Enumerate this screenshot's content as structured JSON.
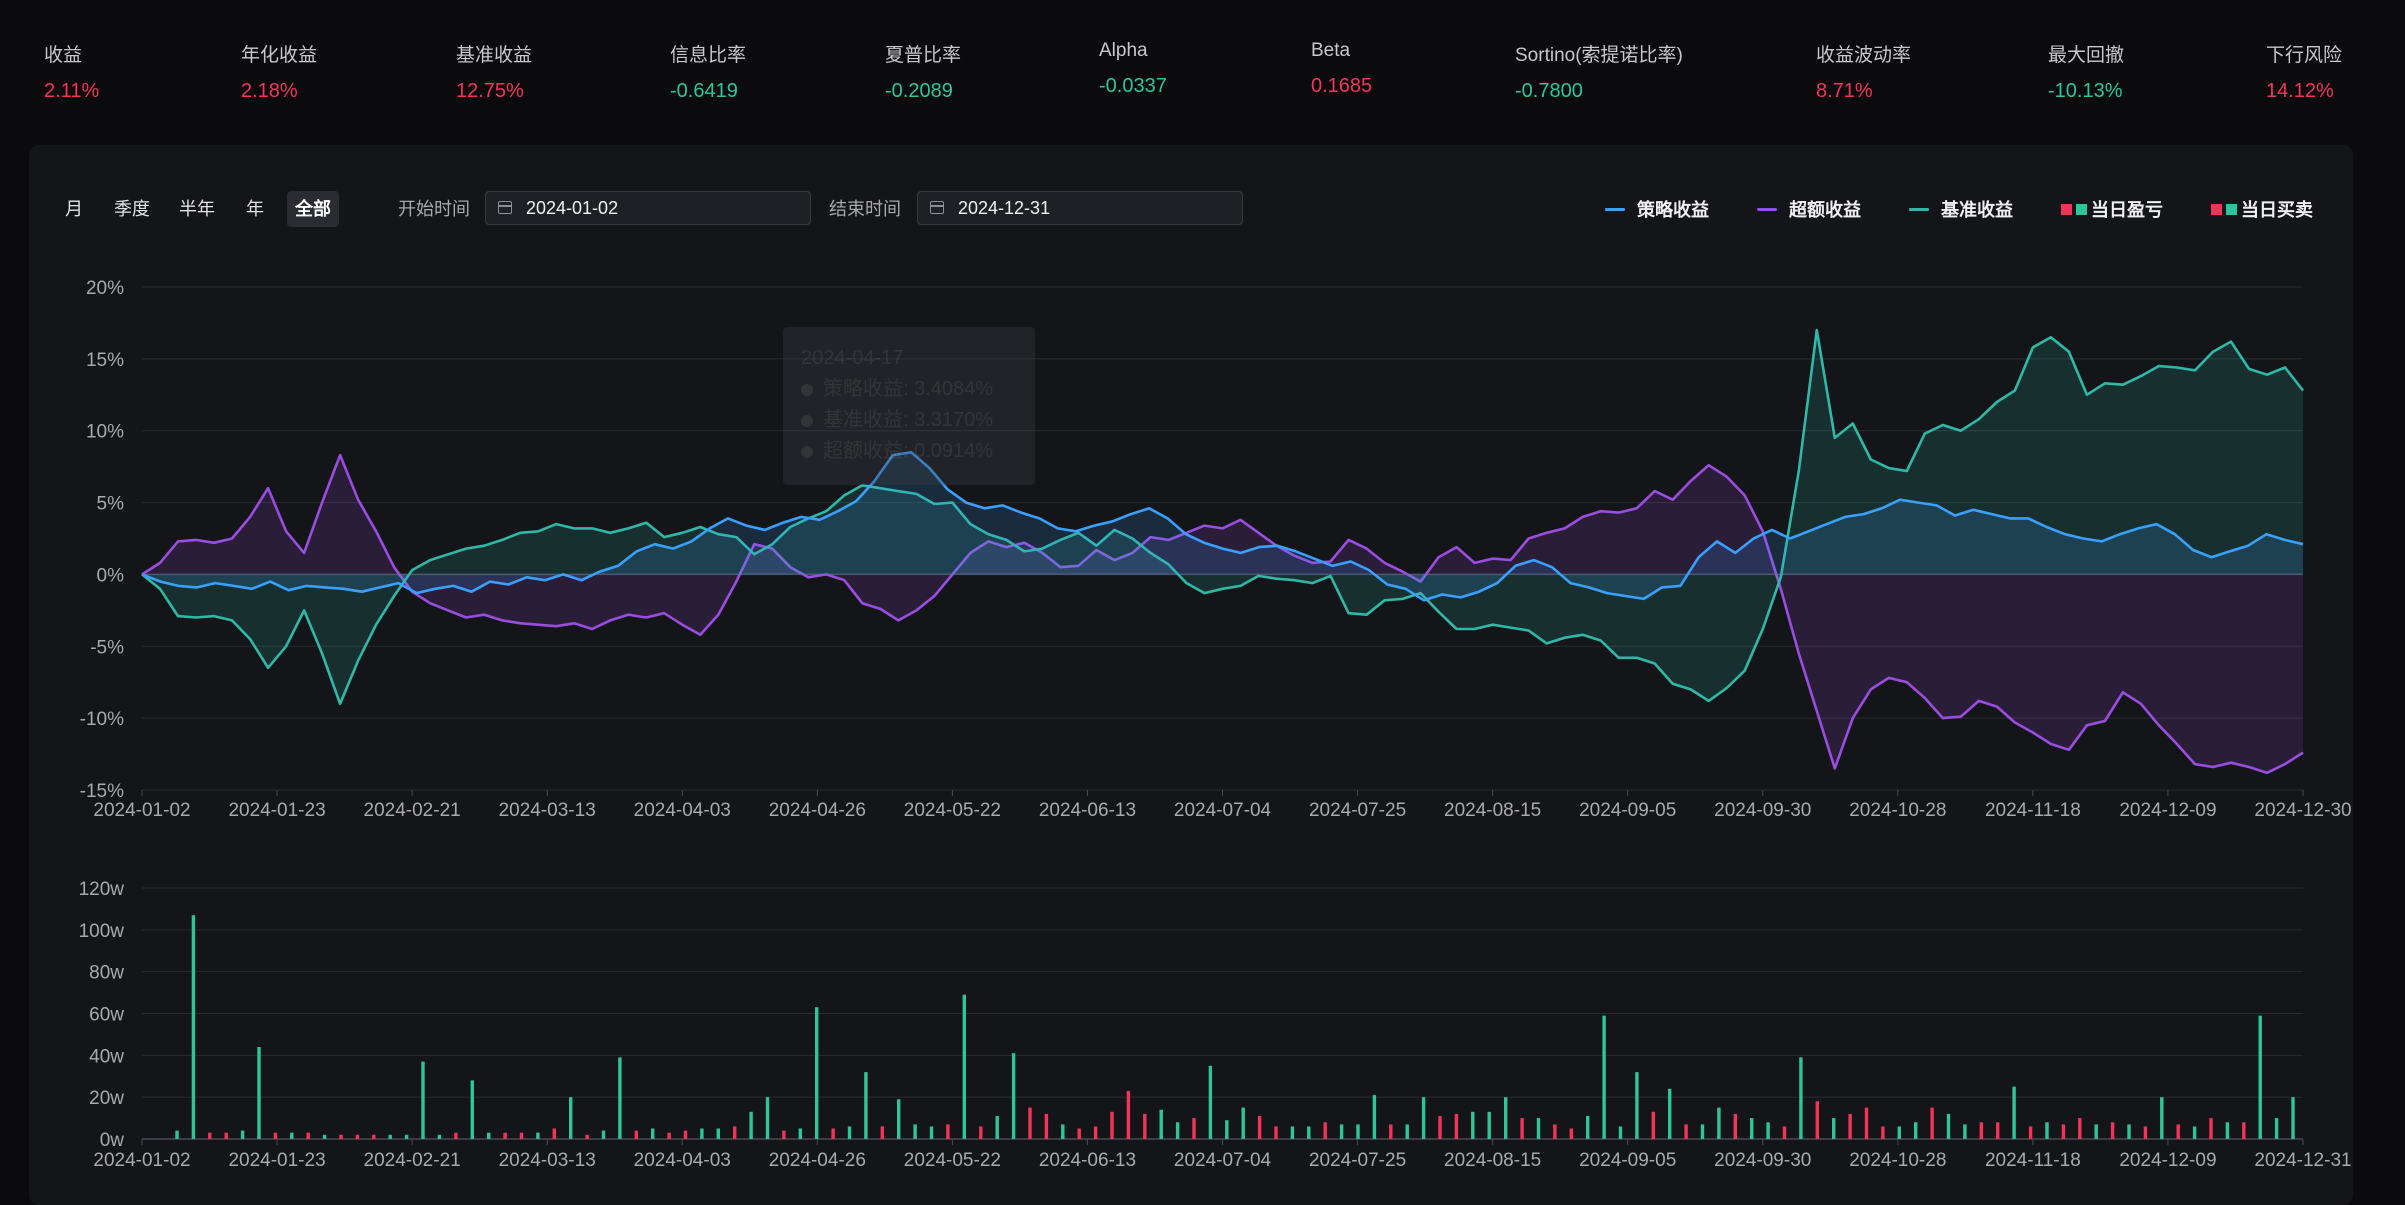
{
  "metrics": [
    {
      "label": "收益",
      "value": "2.11%",
      "dir": "up"
    },
    {
      "label": "年化收益",
      "value": "2.18%",
      "dir": "up"
    },
    {
      "label": "基准收益",
      "value": "12.75%",
      "dir": "up"
    },
    {
      "label": "信息比率",
      "value": "-0.6419",
      "dir": "down"
    },
    {
      "label": "夏普比率",
      "value": "-0.2089",
      "dir": "down"
    },
    {
      "label": "Alpha",
      "value": "-0.0337",
      "dir": "down"
    },
    {
      "label": "Beta",
      "value": "0.1685",
      "dir": "up"
    },
    {
      "label": "Sortino(索提诺比率)",
      "value": "-0.7800",
      "dir": "down"
    },
    {
      "label": "收益波动率",
      "value": "8.71%",
      "dir": "up"
    },
    {
      "label": "最大回撤",
      "value": "-10.13%",
      "dir": "down"
    },
    {
      "label": "下行风险",
      "value": "14.12%",
      "dir": "up"
    }
  ],
  "toolbar": {
    "ranges": [
      "月",
      "季度",
      "半年",
      "年",
      "全部"
    ],
    "active_range": "全部",
    "start_label": "开始时间",
    "start_value": "2024-01-02",
    "end_label": "结束时间",
    "end_value": "2024-12-31"
  },
  "legend": [
    {
      "name": "策略收益",
      "type": "line",
      "color": "#3aa0ff"
    },
    {
      "name": "超额收益",
      "type": "line",
      "color": "#9b4de0"
    },
    {
      "name": "基准收益",
      "type": "line",
      "color": "#2fb8a8"
    },
    {
      "name": "当日盈亏",
      "type": "bars",
      "colors": [
        "#f0345a",
        "#2fc59a"
      ]
    },
    {
      "name": "当日买卖",
      "type": "bars",
      "colors": [
        "#f0345a",
        "#2fc59a"
      ]
    }
  ],
  "colors": {
    "strategy": "#3aa0ff",
    "excess": "#9b4de0",
    "benchmark": "#2fb8a8",
    "up": "#f0345a",
    "down": "#2fc59a",
    "grid": "#2a2b30",
    "axis_text": "#a9a9ae"
  },
  "tooltip": {
    "date": "2024-04-17",
    "rows": [
      "策略收益: 3.4084%",
      "基准收益: 3.3170%",
      "超额收益: 0.0914%"
    ]
  },
  "chart_data": [
    {
      "type": "line",
      "x_ticks": [
        "2024-01-02",
        "2024-01-23",
        "2024-02-21",
        "2024-03-13",
        "2024-04-03",
        "2024-04-26",
        "2024-05-22",
        "2024-06-13",
        "2024-07-04",
        "2024-07-25",
        "2024-08-15",
        "2024-09-05",
        "2024-09-30",
        "2024-10-28",
        "2024-11-18",
        "2024-12-09",
        "2024-12-30"
      ],
      "y_ticks": [
        "20%",
        "15%",
        "10%",
        "5%",
        "0%",
        "-5%",
        "-10%",
        "-15%"
      ],
      "ylim": [
        -15,
        20
      ],
      "y_unit": "%",
      "series": [
        {
          "name": "策略收益",
          "values": [
            0.0,
            -0.5,
            -0.8,
            -0.9,
            -0.6,
            -0.8,
            -1.0,
            -0.5,
            -1.1,
            -0.8,
            -0.9,
            -1.0,
            -1.2,
            -0.9,
            -0.6,
            -1.3,
            -1.0,
            -0.8,
            -1.2,
            -0.5,
            -0.7,
            -0.2,
            -0.4,
            0.0,
            -0.4,
            0.2,
            0.6,
            1.6,
            2.1,
            1.8,
            2.3,
            3.2,
            3.9,
            3.4,
            3.1,
            3.6,
            4.0,
            3.8,
            4.4,
            5.1,
            6.5,
            8.3,
            8.5,
            7.4,
            5.9,
            5.0,
            4.6,
            4.8,
            4.3,
            3.9,
            3.2,
            3.0,
            3.4,
            3.7,
            4.2,
            4.6,
            3.9,
            2.8,
            2.2,
            1.8,
            1.5,
            1.9,
            2.0,
            1.6,
            1.1,
            0.6,
            0.9,
            0.3,
            -0.7,
            -1.0,
            -1.8,
            -1.4,
            -1.6,
            -1.2,
            -0.6,
            0.6,
            1.0,
            0.5,
            -0.6,
            -0.9,
            -1.3,
            -1.5,
            -1.7,
            -0.9,
            -0.8,
            1.2,
            2.3,
            1.5,
            2.5,
            3.1,
            2.5,
            3.0,
            3.5,
            4.0,
            4.2,
            4.6,
            5.2,
            5.0,
            4.8,
            4.1,
            4.5,
            4.2,
            3.9,
            3.9,
            3.3,
            2.8,
            2.5,
            2.3,
            2.8,
            3.2,
            3.5,
            2.8,
            1.7,
            1.2,
            1.6,
            2.0,
            2.8,
            2.4,
            2.1
          ]
        },
        {
          "name": "超额收益",
          "values": [
            0.0,
            0.8,
            2.3,
            2.4,
            2.2,
            2.5,
            4.0,
            6.0,
            3.0,
            1.5,
            5.0,
            8.3,
            5.2,
            3.0,
            0.5,
            -1.2,
            -2.0,
            -2.5,
            -3.0,
            -2.8,
            -3.2,
            -3.4,
            -3.5,
            -3.6,
            -3.4,
            -3.8,
            -3.2,
            -2.8,
            -3.0,
            -2.7,
            -3.5,
            -4.2,
            -2.8,
            -0.5,
            2.1,
            1.8,
            0.5,
            -0.2,
            0.0,
            -0.4,
            -2.0,
            -2.4,
            -3.2,
            -2.5,
            -1.5,
            0.0,
            1.5,
            2.3,
            1.9,
            2.2,
            1.5,
            0.5,
            0.6,
            1.7,
            1.0,
            1.5,
            2.6,
            2.4,
            2.9,
            3.4,
            3.2,
            3.8,
            2.9,
            2.0,
            1.3,
            0.8,
            0.9,
            2.4,
            1.8,
            0.8,
            0.2,
            -0.5,
            1.2,
            1.9,
            0.8,
            1.1,
            1.0,
            2.5,
            2.9,
            3.2,
            4.0,
            4.4,
            4.3,
            4.6,
            5.8,
            5.2,
            6.5,
            7.6,
            6.8,
            5.5,
            3.0,
            -1.0,
            -5.5,
            -9.5,
            -13.5,
            -10.0,
            -8.0,
            -7.2,
            -7.5,
            -8.6,
            -10.0,
            -9.9,
            -8.8,
            -9.2,
            -10.3,
            -11.0,
            -11.8,
            -12.2,
            -10.5,
            -10.2,
            -8.2,
            -9.0,
            -10.5,
            -11.8,
            -13.2,
            -13.4,
            -13.1,
            -13.4,
            -13.8,
            -13.2,
            -12.4
          ]
        },
        {
          "name": "基准收益",
          "values": [
            0.0,
            -1.0,
            -2.9,
            -3.0,
            -2.9,
            -3.2,
            -4.5,
            -6.5,
            -5.0,
            -2.5,
            -5.5,
            -9.0,
            -6.0,
            -3.5,
            -1.5,
            0.3,
            1.0,
            1.4,
            1.8,
            2.0,
            2.4,
            2.9,
            3.0,
            3.5,
            3.2,
            3.2,
            2.9,
            3.2,
            3.6,
            2.6,
            2.9,
            3.3,
            2.8,
            2.6,
            1.4,
            2.1,
            3.3,
            3.9,
            4.4,
            5.5,
            6.2,
            6.0,
            5.8,
            5.6,
            4.9,
            5.0,
            3.5,
            2.8,
            2.4,
            1.6,
            1.8,
            2.4,
            2.9,
            2.0,
            3.1,
            2.5,
            1.5,
            0.7,
            -0.6,
            -1.3,
            -1.0,
            -0.8,
            -0.1,
            -0.3,
            -0.4,
            -0.6,
            -0.1,
            -2.7,
            -2.8,
            -1.8,
            -1.7,
            -1.3,
            -2.6,
            -3.8,
            -3.8,
            -3.5,
            -3.7,
            -3.9,
            -4.8,
            -4.4,
            -4.2,
            -4.6,
            -5.8,
            -5.8,
            -6.2,
            -7.6,
            -8.0,
            -8.8,
            -7.9,
            -6.7,
            -3.8,
            -0.2,
            7.2,
            17.0,
            9.5,
            10.5,
            8.0,
            7.4,
            7.2,
            9.8,
            10.4,
            10.0,
            10.8,
            12.0,
            12.8,
            15.8,
            16.5,
            15.5,
            12.5,
            13.3,
            13.2,
            13.8,
            14.5,
            14.4,
            14.2,
            15.5,
            16.2,
            14.3,
            13.9,
            14.4,
            12.8
          ]
        }
      ]
    },
    {
      "type": "bar",
      "x_ticks": [
        "2024-01-02",
        "2024-01-23",
        "2024-02-21",
        "2024-03-13",
        "2024-04-03",
        "2024-04-26",
        "2024-05-22",
        "2024-06-13",
        "2024-07-04",
        "2024-07-25",
        "2024-08-15",
        "2024-09-05",
        "2024-09-30",
        "2024-10-28",
        "2024-11-18",
        "2024-12-09",
        "2024-12-31"
      ],
      "y_ticks": [
        "120w",
        "100w",
        "80w",
        "60w",
        "40w",
        "20w",
        "0w"
      ],
      "ylim": [
        0,
        120
      ],
      "y_unit": "w",
      "values": [
        4,
        107,
        3,
        3,
        4,
        44,
        3,
        3,
        3,
        2,
        2,
        2,
        2,
        2,
        2,
        37,
        2,
        3,
        28,
        3,
        3,
        3,
        3,
        5,
        20,
        2,
        4,
        39,
        4,
        5,
        3,
        4,
        5,
        5,
        6,
        13,
        20,
        4,
        5,
        63,
        5,
        6,
        32,
        6,
        19,
        7,
        6,
        7,
        69,
        6,
        11,
        41,
        15,
        12,
        7,
        5,
        6,
        13,
        23,
        12,
        14,
        8,
        10,
        35,
        9,
        15,
        11,
        6,
        6,
        6,
        8,
        7,
        7,
        21,
        7,
        7,
        20,
        11,
        12,
        13,
        13,
        20,
        10,
        10,
        7,
        5,
        11,
        59,
        6,
        32,
        13,
        24,
        7,
        7,
        15,
        12,
        10,
        8,
        6,
        39,
        18,
        10,
        12,
        15,
        6,
        6,
        8,
        15,
        12,
        7,
        8,
        8,
        25,
        6,
        8,
        7,
        10,
        7,
        8,
        7,
        6,
        20,
        7,
        6,
        10,
        8,
        8,
        59,
        10,
        20
      ],
      "colors": [
        "down",
        "down",
        "up",
        "up",
        "down",
        "down",
        "up",
        "down",
        "up",
        "down",
        "up",
        "up",
        "up",
        "down",
        "down",
        "down",
        "down",
        "up",
        "down",
        "down",
        "up",
        "up",
        "down",
        "up",
        "down",
        "up",
        "down",
        "down",
        "up",
        "down",
        "up",
        "up",
        "down",
        "down",
        "up",
        "down",
        "down",
        "up",
        "down",
        "down",
        "up",
        "down",
        "down",
        "up",
        "down",
        "down",
        "down",
        "up",
        "down",
        "up",
        "down",
        "down",
        "up",
        "up",
        "down",
        "up",
        "up",
        "up",
        "up",
        "up",
        "down",
        "down",
        "up",
        "down",
        "down",
        "down",
        "up",
        "up",
        "down",
        "down",
        "up",
        "down",
        "down",
        "down",
        "up",
        "down",
        "down",
        "up",
        "up",
        "down",
        "down",
        "down",
        "up",
        "down",
        "up",
        "up",
        "down",
        "down",
        "down",
        "down",
        "up",
        "down",
        "up",
        "down",
        "down",
        "up",
        "down",
        "down",
        "up",
        "down",
        "up",
        "down",
        "up",
        "up",
        "up",
        "down",
        "down",
        "up",
        "down",
        "down",
        "up",
        "up",
        "down",
        "up",
        "down",
        "up",
        "up",
        "down",
        "up",
        "down",
        "up",
        "down",
        "up",
        "down",
        "up",
        "down",
        "up",
        "down",
        "down",
        "down"
      ]
    }
  ]
}
